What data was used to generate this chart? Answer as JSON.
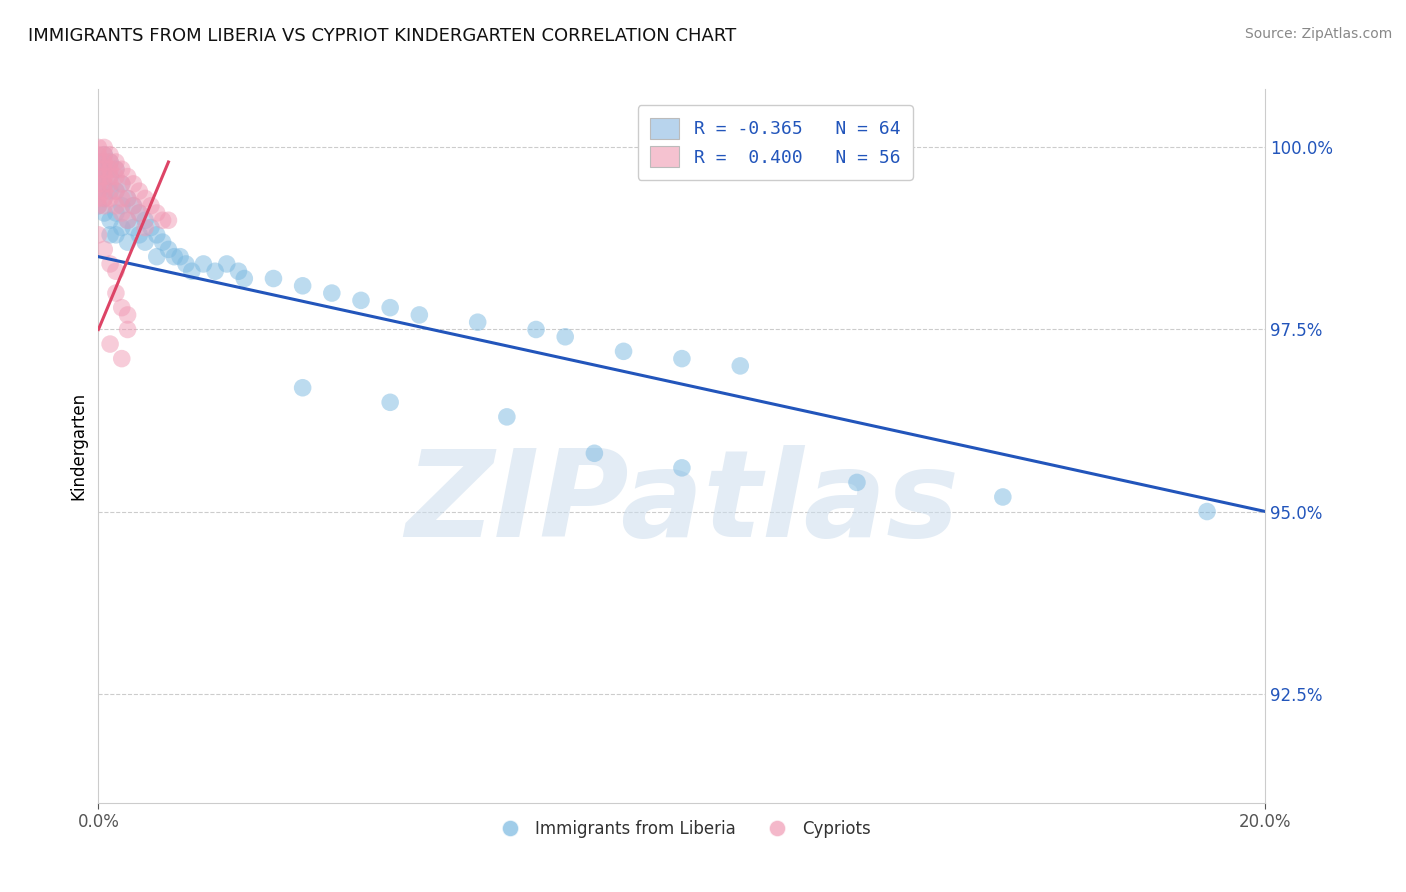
{
  "title": "IMMIGRANTS FROM LIBERIA VS CYPRIOT KINDERGARTEN CORRELATION CHART",
  "source_text": "Source: ZipAtlas.com",
  "ylabel": "Kindergarten",
  "watermark": "ZIPatlas",
  "xlim": [
    0.0,
    0.2
  ],
  "ylim": [
    0.91,
    1.008
  ],
  "ytick_vals": [
    0.925,
    0.95,
    0.975,
    1.0
  ],
  "legend_entries": [
    {
      "label": "R = -0.365   N = 64",
      "facecolor": "#b8d4ed"
    },
    {
      "label": "R =  0.400   N = 56",
      "facecolor": "#f5c2d0"
    }
  ],
  "blue_color": "#7ab8e0",
  "pink_color": "#f09ab4",
  "blue_line_color": "#2255bb",
  "pink_line_color": "#dd4466",
  "blue_scatter": [
    [
      0.0,
      0.998
    ],
    [
      0.0,
      0.996
    ],
    [
      0.0,
      0.994
    ],
    [
      0.0,
      0.992
    ],
    [
      0.001,
      0.999
    ],
    [
      0.001,
      0.997
    ],
    [
      0.001,
      0.995
    ],
    [
      0.001,
      0.993
    ],
    [
      0.001,
      0.991
    ],
    [
      0.002,
      0.998
    ],
    [
      0.002,
      0.996
    ],
    [
      0.002,
      0.994
    ],
    [
      0.002,
      0.99
    ],
    [
      0.002,
      0.988
    ],
    [
      0.003,
      0.997
    ],
    [
      0.003,
      0.994
    ],
    [
      0.003,
      0.991
    ],
    [
      0.003,
      0.988
    ],
    [
      0.004,
      0.995
    ],
    [
      0.004,
      0.992
    ],
    [
      0.004,
      0.989
    ],
    [
      0.005,
      0.993
    ],
    [
      0.005,
      0.99
    ],
    [
      0.005,
      0.987
    ],
    [
      0.006,
      0.992
    ],
    [
      0.006,
      0.989
    ],
    [
      0.007,
      0.991
    ],
    [
      0.007,
      0.988
    ],
    [
      0.008,
      0.99
    ],
    [
      0.008,
      0.987
    ],
    [
      0.009,
      0.989
    ],
    [
      0.01,
      0.988
    ],
    [
      0.01,
      0.985
    ],
    [
      0.011,
      0.987
    ],
    [
      0.012,
      0.986
    ],
    [
      0.013,
      0.985
    ],
    [
      0.014,
      0.985
    ],
    [
      0.015,
      0.984
    ],
    [
      0.016,
      0.983
    ],
    [
      0.018,
      0.984
    ],
    [
      0.02,
      0.983
    ],
    [
      0.022,
      0.984
    ],
    [
      0.024,
      0.983
    ],
    [
      0.025,
      0.982
    ],
    [
      0.03,
      0.982
    ],
    [
      0.035,
      0.981
    ],
    [
      0.04,
      0.98
    ],
    [
      0.045,
      0.979
    ],
    [
      0.05,
      0.978
    ],
    [
      0.055,
      0.977
    ],
    [
      0.065,
      0.976
    ],
    [
      0.075,
      0.975
    ],
    [
      0.08,
      0.974
    ],
    [
      0.09,
      0.972
    ],
    [
      0.1,
      0.971
    ],
    [
      0.11,
      0.97
    ],
    [
      0.035,
      0.967
    ],
    [
      0.05,
      0.965
    ],
    [
      0.07,
      0.963
    ],
    [
      0.085,
      0.958
    ],
    [
      0.1,
      0.956
    ],
    [
      0.13,
      0.954
    ],
    [
      0.155,
      0.952
    ],
    [
      0.19,
      0.95
    ]
  ],
  "pink_scatter": [
    [
      0.0,
      1.0
    ],
    [
      0.0,
      0.999
    ],
    [
      0.0,
      0.998
    ],
    [
      0.0,
      0.997
    ],
    [
      0.0,
      0.996
    ],
    [
      0.0,
      0.995
    ],
    [
      0.0,
      0.994
    ],
    [
      0.0,
      0.993
    ],
    [
      0.0,
      0.992
    ],
    [
      0.001,
      1.0
    ],
    [
      0.001,
      0.999
    ],
    [
      0.001,
      0.998
    ],
    [
      0.001,
      0.997
    ],
    [
      0.001,
      0.996
    ],
    [
      0.001,
      0.995
    ],
    [
      0.001,
      0.994
    ],
    [
      0.001,
      0.993
    ],
    [
      0.001,
      0.992
    ],
    [
      0.002,
      0.999
    ],
    [
      0.002,
      0.998
    ],
    [
      0.002,
      0.997
    ],
    [
      0.002,
      0.996
    ],
    [
      0.002,
      0.995
    ],
    [
      0.002,
      0.993
    ],
    [
      0.003,
      0.998
    ],
    [
      0.003,
      0.997
    ],
    [
      0.003,
      0.996
    ],
    [
      0.003,
      0.994
    ],
    [
      0.003,
      0.992
    ],
    [
      0.004,
      0.997
    ],
    [
      0.004,
      0.995
    ],
    [
      0.004,
      0.993
    ],
    [
      0.004,
      0.991
    ],
    [
      0.005,
      0.996
    ],
    [
      0.005,
      0.993
    ],
    [
      0.005,
      0.99
    ],
    [
      0.006,
      0.995
    ],
    [
      0.006,
      0.992
    ],
    [
      0.007,
      0.994
    ],
    [
      0.007,
      0.991
    ],
    [
      0.008,
      0.993
    ],
    [
      0.008,
      0.989
    ],
    [
      0.009,
      0.992
    ],
    [
      0.01,
      0.991
    ],
    [
      0.011,
      0.99
    ],
    [
      0.012,
      0.99
    ],
    [
      0.0,
      0.988
    ],
    [
      0.001,
      0.986
    ],
    [
      0.002,
      0.984
    ],
    [
      0.003,
      0.983
    ],
    [
      0.003,
      0.98
    ],
    [
      0.004,
      0.978
    ],
    [
      0.005,
      0.977
    ],
    [
      0.005,
      0.975
    ],
    [
      0.002,
      0.973
    ],
    [
      0.004,
      0.971
    ]
  ],
  "blue_line_x": [
    0.0,
    0.2
  ],
  "blue_line_y": [
    0.985,
    0.95
  ],
  "pink_line_x": [
    0.0,
    0.012
  ],
  "pink_line_y": [
    0.975,
    0.998
  ]
}
